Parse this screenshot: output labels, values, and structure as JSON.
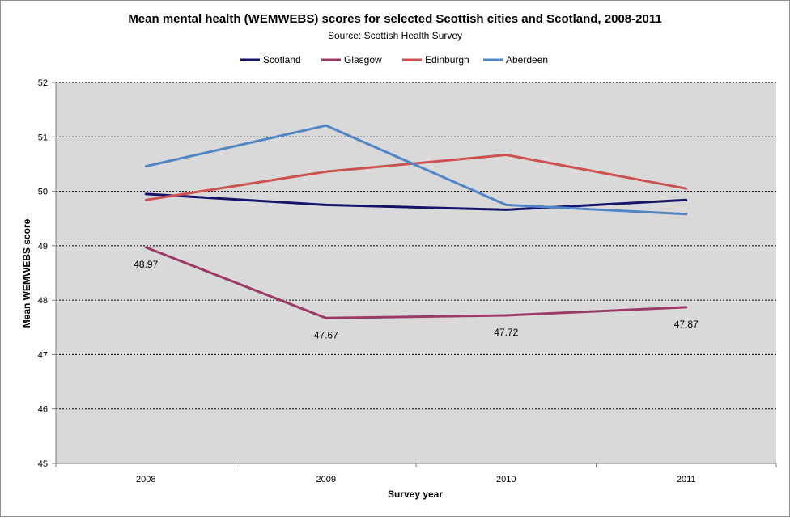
{
  "chart_data": {
    "type": "line",
    "title": "Mean mental health (WEMWEBS) scores for selected Scottish cities and Scotland, 2008-2011",
    "subtitle": "Source: Scottish Health Survey",
    "xlabel": "Survey year",
    "ylabel": "Mean WEMWEBS score",
    "categories": [
      "2008",
      "2009",
      "2010",
      "2011"
    ],
    "ylim": [
      45,
      52
    ],
    "yticks": [
      45,
      46,
      47,
      48,
      49,
      50,
      51,
      52
    ],
    "grid": true,
    "legend_position": "top",
    "plot_background": "#d9d9d9",
    "series": [
      {
        "name": "Scotland",
        "color": "#16136a",
        "values": [
          49.95,
          49.75,
          49.66,
          49.84
        ]
      },
      {
        "name": "Glasgow",
        "color": "#9c3a67",
        "values": [
          48.97,
          47.67,
          47.72,
          47.87
        ],
        "data_labels": [
          "48.97",
          "47.67",
          "47.72",
          "47.87"
        ]
      },
      {
        "name": "Edinburgh",
        "color": "#cc5150",
        "values": [
          49.84,
          50.36,
          50.67,
          50.05
        ]
      },
      {
        "name": "Aberdeen",
        "color": "#5186c6",
        "values": [
          50.46,
          51.21,
          49.75,
          49.58
        ]
      }
    ]
  }
}
